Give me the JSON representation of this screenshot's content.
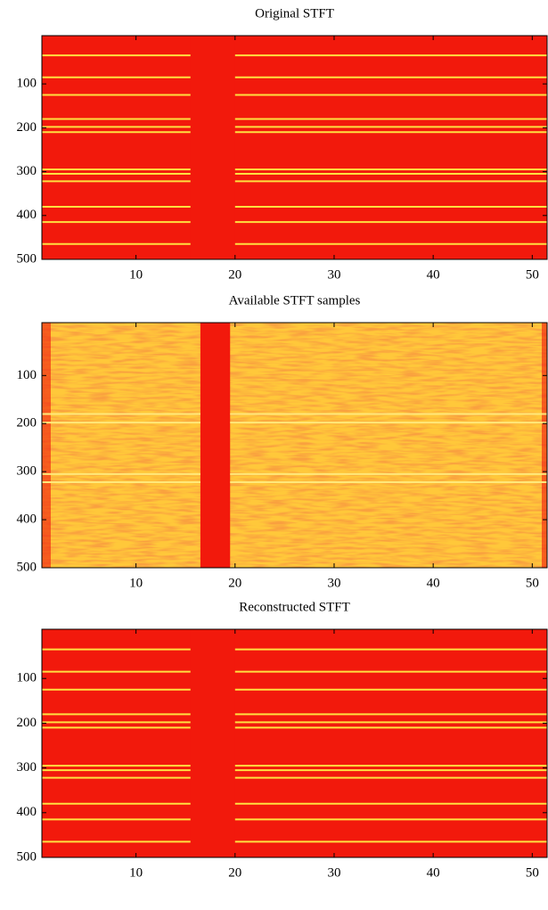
{
  "chart_data": [
    {
      "type": "heatmap",
      "title": "Original STFT",
      "xlim": [
        0.5,
        51.5
      ],
      "ylim": [
        -10,
        500
      ],
      "xticks": [
        10,
        20,
        30,
        40,
        50
      ],
      "yticks": [
        100,
        200,
        300,
        400,
        500
      ],
      "color": "#f2190c",
      "ridge_color": "#ffe040",
      "ridges": [
        35,
        85,
        125,
        180,
        198,
        210,
        295,
        305,
        322,
        380,
        415,
        465
      ],
      "gap": [
        15.5,
        20
      ],
      "noise": false
    },
    {
      "type": "heatmap",
      "title": "Available STFT samples",
      "xlim": [
        0.5,
        51.5
      ],
      "ylim": [
        -10,
        500
      ],
      "xticks": [
        10,
        20,
        30,
        40,
        50
      ],
      "yticks": [
        100,
        200,
        300,
        400,
        500
      ],
      "color": "#f2190c",
      "ridge_color": "#ffe87a",
      "ridges": [
        180,
        198,
        305,
        322
      ],
      "gap": [
        16.5,
        19.5
      ],
      "noise": true
    },
    {
      "type": "heatmap",
      "title": "Reconstructed STFT",
      "xlim": [
        0.5,
        51.5
      ],
      "ylim": [
        -10,
        500
      ],
      "xticks": [
        10,
        20,
        30,
        40,
        50
      ],
      "yticks": [
        100,
        200,
        300,
        400,
        500
      ],
      "color": "#f2190c",
      "ridge_color": "#ffe040",
      "ridges": [
        35,
        85,
        125,
        180,
        198,
        210,
        295,
        305,
        322,
        380,
        415,
        465
      ],
      "gap": [
        15.5,
        20
      ],
      "noise": false
    }
  ]
}
